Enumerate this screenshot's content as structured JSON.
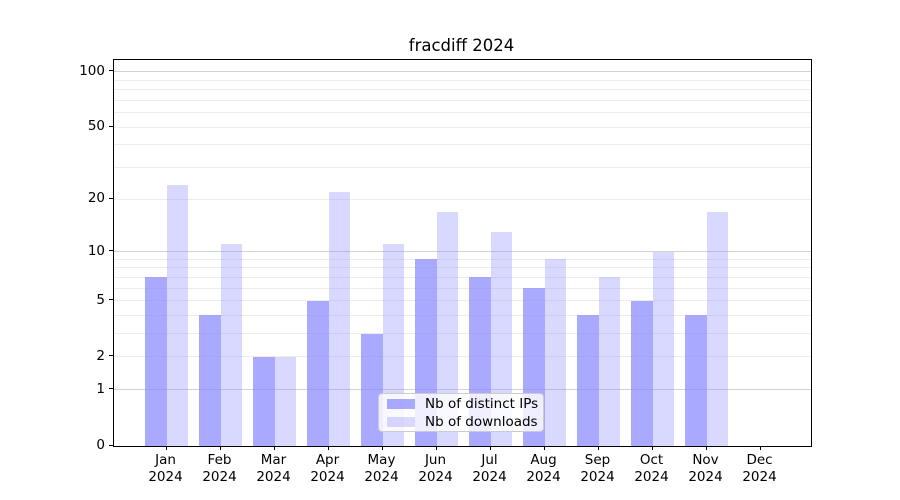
{
  "title": "fracdiff 2024",
  "chart_data": {
    "type": "bar",
    "title": "fracdiff 2024",
    "categories": [
      "Jan",
      "Feb",
      "Mar",
      "Apr",
      "May",
      "Jun",
      "Jul",
      "Aug",
      "Sep",
      "Oct",
      "Nov",
      "Dec"
    ],
    "year_label": "2024",
    "series": [
      {
        "name": "Nb of distinct IPs",
        "color": "rgba(136,136,255,0.72)",
        "values": [
          7,
          4,
          2,
          5,
          3,
          9,
          7,
          6,
          4,
          5,
          4,
          0
        ]
      },
      {
        "name": "Nb of downloads",
        "color": "rgba(136,136,255,0.32)",
        "values": [
          24,
          11,
          2,
          22,
          11,
          17,
          13,
          9,
          7,
          10,
          17,
          0
        ]
      }
    ],
    "yscale": "log1p",
    "ytick_labels": [
      "0",
      "1",
      "2",
      "5",
      "10",
      "20",
      "50",
      "100"
    ],
    "ytick_values": [
      0,
      1,
      2,
      5,
      10,
      20,
      50,
      100
    ],
    "grid_major_values": [
      1,
      10,
      100
    ],
    "grid_minor_values": [
      2,
      3,
      4,
      5,
      6,
      7,
      8,
      9,
      20,
      30,
      40,
      50,
      60,
      70,
      80,
      90
    ],
    "ylim": [
      0,
      115
    ],
    "grid": "on",
    "legend_position": "lower center inside",
    "xlabel": "",
    "ylabel": ""
  },
  "colors": {
    "bar_distinct_ips": "rgba(136,136,255,0.72)",
    "bar_downloads": "rgba(136,136,255,0.32)",
    "grid_major": "#d2d2d2",
    "grid_minor": "#ececec",
    "spine": "#000000",
    "background": "#ffffff"
  }
}
